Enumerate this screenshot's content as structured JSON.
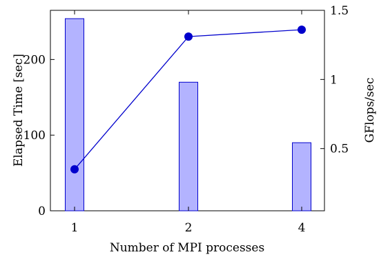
{
  "chart_data": {
    "type": "bar+line",
    "categories": [
      "1",
      "2",
      "4"
    ],
    "xlabel": "Number of MPI processes",
    "ylabel": "Elapsed Time [sec]",
    "y2label": "GFlops/sec",
    "ylim": [
      0,
      265
    ],
    "y2lim": [
      0.05,
      1.5
    ],
    "yticks": [
      0,
      100,
      200
    ],
    "y2ticks": [
      "0.5",
      "1",
      "1.5"
    ],
    "y2tick_values": [
      0.5,
      1.0,
      1.5
    ],
    "grid": false,
    "series": [
      {
        "type": "bar",
        "axis": "left",
        "values": [
          254,
          170,
          90
        ],
        "color": "#b3b3ff",
        "edge_color": "#0000cc"
      },
      {
        "type": "line",
        "axis": "right",
        "values": [
          0.35,
          1.31,
          1.36
        ],
        "color": "#0000cc"
      }
    ]
  }
}
